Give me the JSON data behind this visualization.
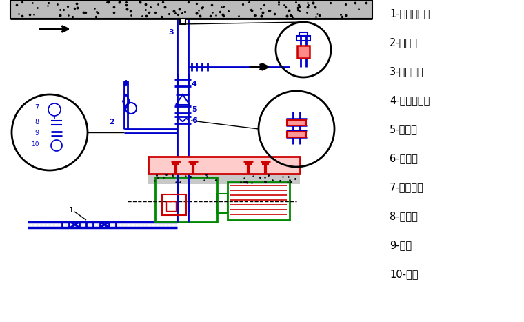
{
  "legend_items": [
    "1-蝶阅或闸阅",
    "2-压力表",
    "3-弹性吸架",
    "4-蝶阅或闸阅",
    "5-止回阅",
    "6-软接头",
    "7-压力表盘",
    "8-旋塞阅",
    "9-钉管",
    "10-接头"
  ],
  "blue": "#0000CC",
  "green": "#008800",
  "red": "#CC0000",
  "black": "#000000",
  "bg": "#FFFFFF",
  "concrete_gray": "#BBBBBB"
}
